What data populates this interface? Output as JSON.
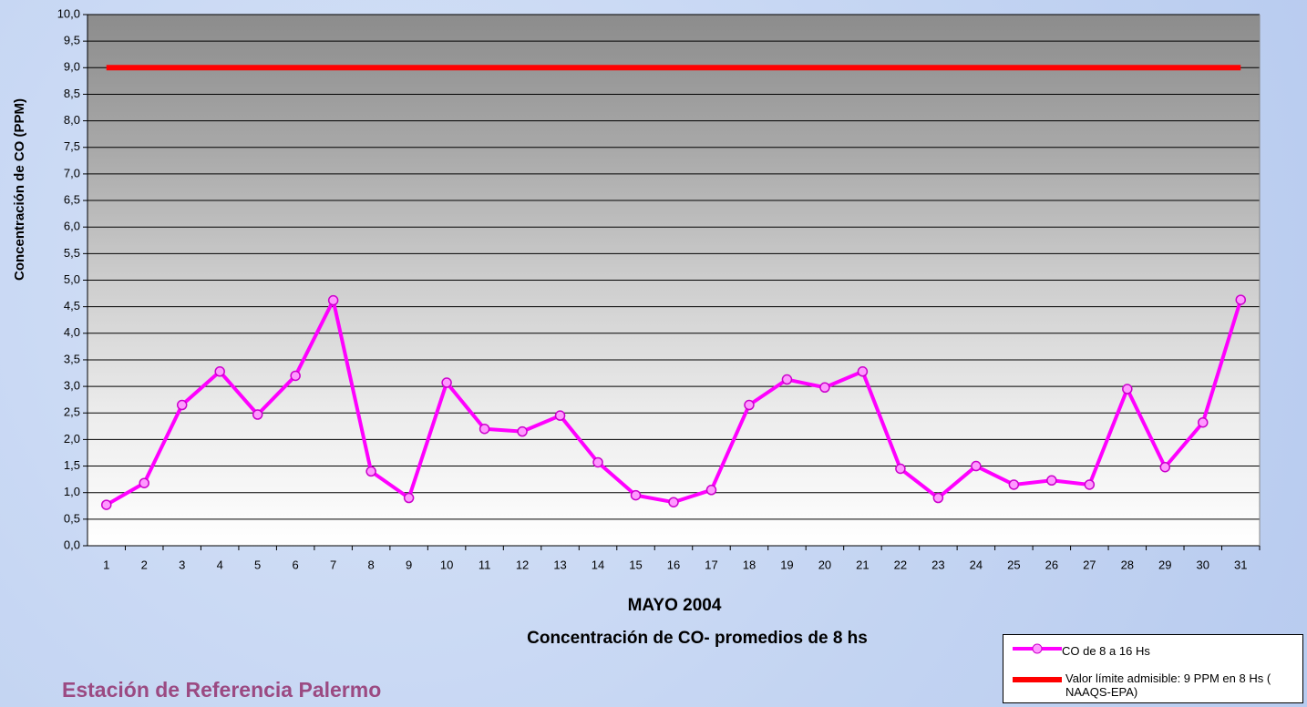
{
  "chart_data": {
    "type": "line",
    "title": "MAYO 2004",
    "subtitle": "Concentración de CO- promedios de 8 hs",
    "ylabel": "Concentración de CO (PPM)",
    "footer": "Estación de Referencia Palermo",
    "categories": [
      "1",
      "2",
      "3",
      "4",
      "5",
      "6",
      "7",
      "8",
      "9",
      "10",
      "11",
      "12",
      "13",
      "14",
      "15",
      "16",
      "17",
      "18",
      "19",
      "20",
      "21",
      "22",
      "23",
      "24",
      "25",
      "26",
      "27",
      "28",
      "29",
      "30",
      "31"
    ],
    "series": [
      {
        "name": "CO de 8 a 16 Hs",
        "color": "#ff00ff",
        "marker": true,
        "values": [
          0.77,
          1.18,
          2.65,
          3.28,
          2.47,
          3.2,
          4.62,
          1.4,
          0.9,
          3.07,
          2.2,
          2.15,
          2.45,
          1.57,
          0.95,
          0.82,
          1.05,
          2.65,
          3.13,
          2.98,
          3.28,
          1.45,
          0.9,
          1.5,
          1.15,
          1.23,
          1.15,
          2.95,
          1.48,
          2.32,
          4.63
        ]
      },
      {
        "name": "Valor límite admisible: 9 PPM en 8 Hs ( NAAQS-EPA)",
        "color": "#ff0000",
        "marker": false,
        "values": [
          9,
          9,
          9,
          9,
          9,
          9,
          9,
          9,
          9,
          9,
          9,
          9,
          9,
          9,
          9,
          9,
          9,
          9,
          9,
          9,
          9,
          9,
          9,
          9,
          9,
          9,
          9,
          9,
          9,
          9,
          9
        ]
      }
    ],
    "ylim": [
      0,
      10
    ],
    "yticks": [
      {
        "value": 0,
        "label": "0,0"
      },
      {
        "value": 0.5,
        "label": "0,5"
      },
      {
        "value": 1,
        "label": "1,0"
      },
      {
        "value": 1.5,
        "label": "1,5"
      },
      {
        "value": 2,
        "label": "2,0"
      },
      {
        "value": 2.5,
        "label": "2,5"
      },
      {
        "value": 3,
        "label": "3,0"
      },
      {
        "value": 3.5,
        "label": "3,5"
      },
      {
        "value": 4,
        "label": "4,0"
      },
      {
        "value": 4.5,
        "label": "4,5"
      },
      {
        "value": 5,
        "label": "5,0"
      },
      {
        "value": 5.5,
        "label": "5,5"
      },
      {
        "value": 6,
        "label": "6,0"
      },
      {
        "value": 6.5,
        "label": "6,5"
      },
      {
        "value": 7,
        "label": "7,0"
      },
      {
        "value": 7.5,
        "label": "7,5"
      },
      {
        "value": 8,
        "label": "8,0"
      },
      {
        "value": 8.5,
        "label": "8,5"
      },
      {
        "value": 9,
        "label": "9,0"
      },
      {
        "value": 9.5,
        "label": "9,5"
      },
      {
        "value": 10,
        "label": "10,0"
      }
    ],
    "grid": true,
    "legend": "bottom-right"
  }
}
